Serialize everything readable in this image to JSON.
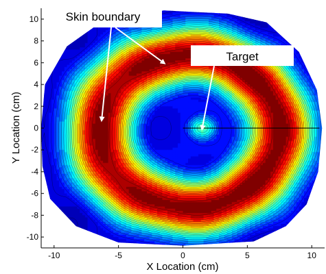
{
  "chart_data": {
    "type": "heatmap",
    "title": "",
    "xlabel": "X Location (cm)",
    "ylabel": "Y Location (cm)",
    "xlim": [
      -11,
      11
    ],
    "ylim": [
      -11,
      11
    ],
    "xticks": [
      -10,
      -5,
      0,
      5,
      10
    ],
    "yticks": [
      -10,
      -8,
      -6,
      -4,
      -2,
      0,
      2,
      4,
      6,
      8,
      10
    ],
    "grid": false,
    "colormap": "jet",
    "colormap_colors": [
      "#00008f",
      "#0000ff",
      "#0080ff",
      "#00ffff",
      "#80ff80",
      "#ffff00",
      "#ff8000",
      "#ff0000",
      "#800000"
    ],
    "contour_line_color": "#000000",
    "contour_levels": 22,
    "domain": {
      "shape": "polygon",
      "vertices": [
        [
          -1.5,
          10.8
        ],
        [
          3.5,
          10.5
        ],
        [
          6.5,
          9.7
        ],
        [
          9.0,
          7.0
        ],
        [
          10.4,
          3.5
        ],
        [
          10.8,
          0.0
        ],
        [
          10.5,
          -4.0
        ],
        [
          9.6,
          -7.0
        ],
        [
          8.0,
          -9.0
        ],
        [
          5.5,
          -10.4
        ],
        [
          0.0,
          -10.8
        ],
        [
          -5.0,
          -10.5
        ],
        [
          -8.3,
          -9.0
        ],
        [
          -10.3,
          -6.5
        ],
        [
          -10.9,
          -3.5
        ],
        [
          -11.0,
          0.0
        ],
        [
          -10.7,
          4.0
        ],
        [
          -9.0,
          7.5
        ],
        [
          -6.5,
          9.6
        ]
      ]
    },
    "field_model": {
      "description": "Ring-shaped intensity peaking at the skin boundary, low interior, local bright spot at target",
      "boundary_center": [
        0.5,
        -0.3
      ],
      "boundary_radius_x": 7.0,
      "boundary_radius_y": 7.0,
      "ring_peak_value": 1.0,
      "interior_value": 0.12,
      "outer_value": 0.08,
      "ring_width": 1.9,
      "target_center": [
        1.5,
        0.0
      ],
      "target_peak_value": 0.42,
      "target_width": 0.9
    },
    "annotations": [
      {
        "text": "Skin boundary",
        "arrow_targets": [
          [
            -1.5,
            6.0
          ],
          [
            -6.3,
            0.8
          ]
        ]
      },
      {
        "text": "Target",
        "arrow_targets": [
          [
            1.5,
            0.0
          ]
        ]
      }
    ],
    "reference_line": {
      "y": 0,
      "x_from": 0,
      "x_to": 10.6
    }
  }
}
